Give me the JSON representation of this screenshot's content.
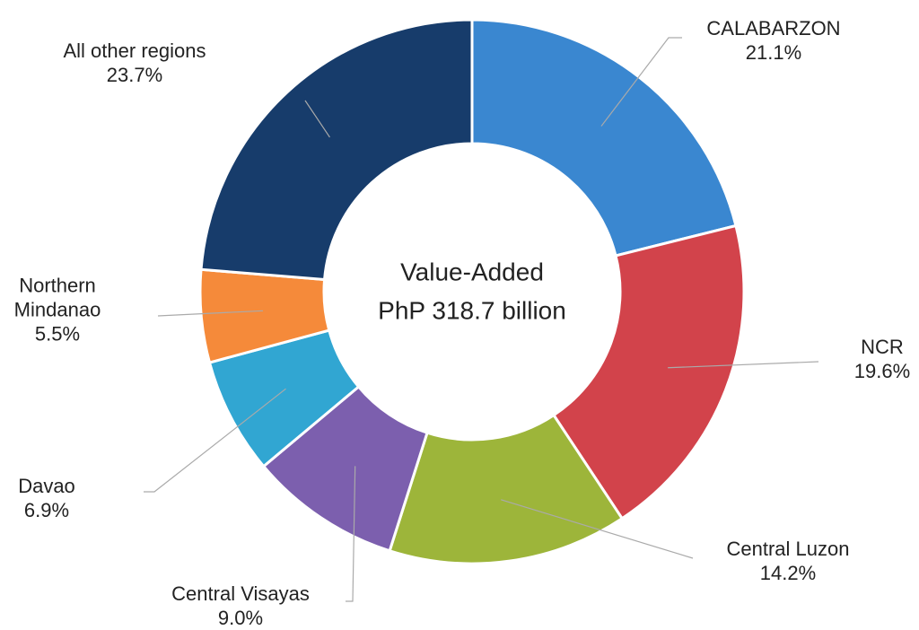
{
  "chart_data": {
    "type": "donut",
    "center_label": [
      "Value-Added",
      "PhP 318.7 billion"
    ],
    "categories": [
      "CALABARZON",
      "NCR",
      "Central Luzon",
      "Central Visayas",
      "Davao",
      "Northern Mindanao",
      "All other regions"
    ],
    "values": [
      21.1,
      19.6,
      14.2,
      9.0,
      6.9,
      5.5,
      23.7
    ],
    "value_labels": [
      "21.1%",
      "19.6%",
      "14.2%",
      "9.0%",
      "6.9%",
      "5.5%",
      "23.7%"
    ],
    "colors": [
      "#3a87d0",
      "#d2434b",
      "#9db53a",
      "#7c5fae",
      "#31a6d2",
      "#f58a3a",
      "#173c6b"
    ]
  }
}
